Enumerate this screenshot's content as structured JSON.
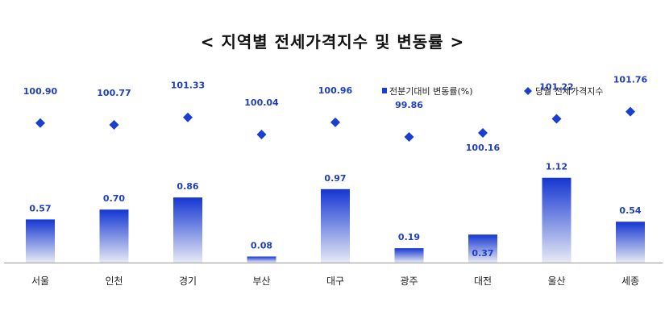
{
  "chart_data": {
    "type": "bar+scatter",
    "title": "< 지역별 전세가격지수 및 변동률 >",
    "categories": [
      "서울",
      "인천",
      "경기",
      "부산",
      "대구",
      "광주",
      "대전",
      "울산",
      "세종"
    ],
    "series": [
      {
        "name": "전분기대비 변동률(%)",
        "type": "bar",
        "values": [
          0.57,
          0.7,
          0.86,
          0.08,
          0.97,
          0.19,
          0.37,
          1.12,
          0.54
        ],
        "value_labels": [
          "0.57",
          "0.70",
          "0.86",
          "0.08",
          "0.97",
          "0.19",
          "0.37",
          "1.12",
          "0.54"
        ],
        "color": "#1a3fd0"
      },
      {
        "name": "당월 전세가격지수",
        "type": "scatter",
        "values": [
          100.9,
          100.77,
          101.33,
          100.04,
          100.96,
          99.86,
          100.16,
          101.22,
          101.76
        ],
        "value_labels": [
          "100.90",
          "100.77",
          "101.33",
          "100.04",
          "100.96",
          "99.86",
          "100.16",
          "101.22",
          "101.76"
        ],
        "color": "#1a3fd0"
      }
    ],
    "legend_position": "top-right",
    "grid": false
  }
}
